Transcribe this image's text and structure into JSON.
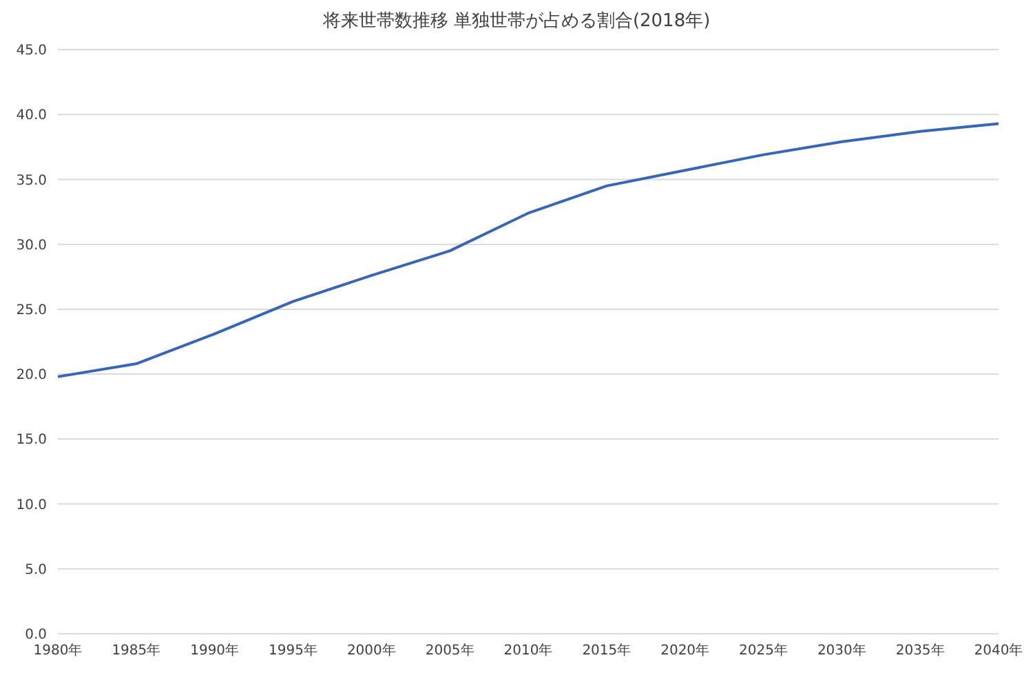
{
  "chart_data": {
    "type": "line",
    "title": "将来世帯数推移  単独世帯が占める割合(2018年)",
    "categories": [
      "1980年",
      "1985年",
      "1990年",
      "1995年",
      "2000年",
      "2005年",
      "2010年",
      "2015年",
      "2020年",
      "2025年",
      "2030年",
      "2035年",
      "2040年"
    ],
    "series": [
      {
        "color": "#3566b8",
        "values": [
          19.8,
          20.8,
          23.1,
          25.6,
          27.6,
          29.5,
          32.4,
          34.5,
          35.7,
          36.9,
          37.9,
          38.7,
          39.3
        ]
      }
    ],
    "ylim": [
      0,
      45
    ],
    "yticks": [
      {
        "value": 0,
        "label": "0.0"
      },
      {
        "value": 5,
        "label": "5.0"
      },
      {
        "value": 10,
        "label": "10.0"
      },
      {
        "value": 15,
        "label": "15.0"
      },
      {
        "value": 20,
        "label": "20.0"
      },
      {
        "value": 25,
        "label": "25.0"
      },
      {
        "value": 30,
        "label": "30.0"
      },
      {
        "value": 35,
        "label": "35.0"
      },
      {
        "value": 40,
        "label": "40.0"
      },
      {
        "value": 45,
        "label": "45.0"
      }
    ],
    "grid": "y",
    "legend": false,
    "marker": "none",
    "line_style": "solid"
  }
}
